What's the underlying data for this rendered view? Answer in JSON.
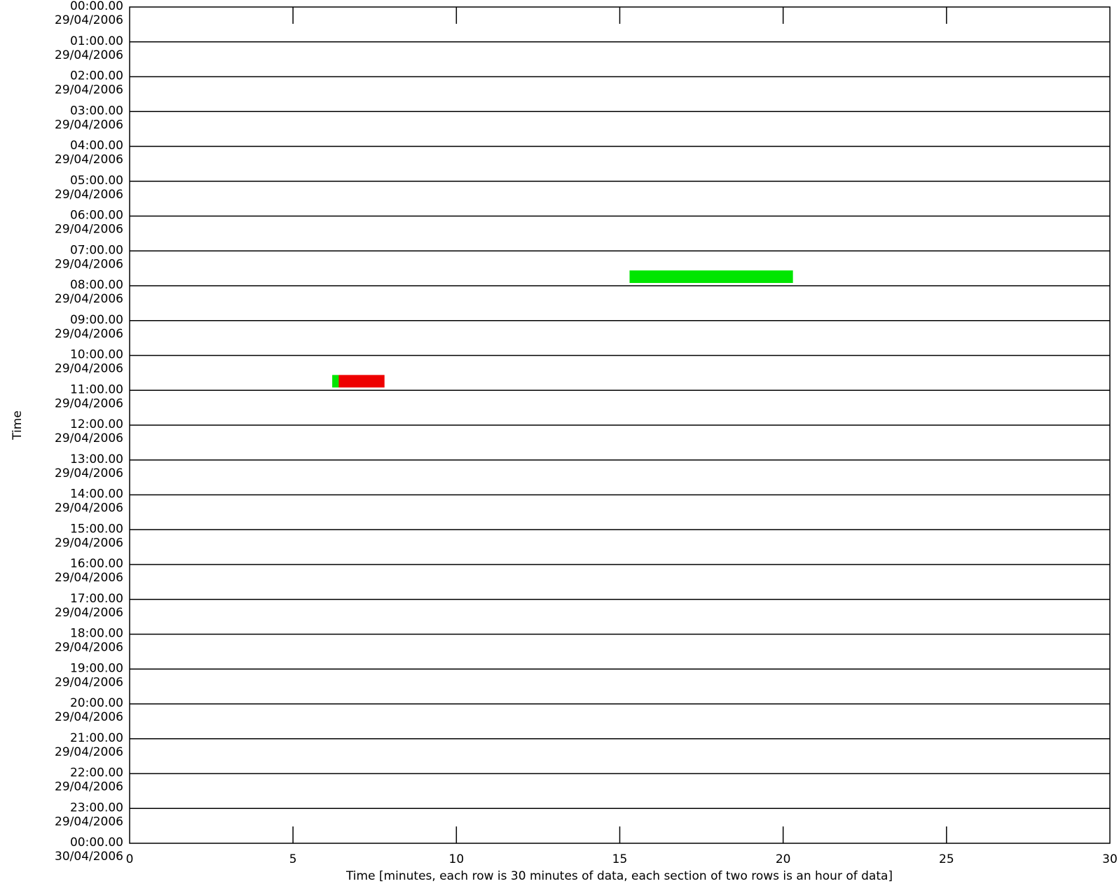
{
  "chart_data": {
    "type": "heatmap",
    "title": "",
    "xlabel": "Time [minutes, each row is 30 minutes of data, each section of two rows is an hour of data]",
    "ylabel": "Time",
    "xlim": [
      0,
      30
    ],
    "x_ticks": [
      "0",
      "5",
      "10",
      "15",
      "20",
      "25",
      "30"
    ],
    "y_ticks": [
      {
        "time": "00:00.00",
        "date": "29/04/2006"
      },
      {
        "time": "01:00.00",
        "date": "29/04/2006"
      },
      {
        "time": "02:00.00",
        "date": "29/04/2006"
      },
      {
        "time": "03:00.00",
        "date": "29/04/2006"
      },
      {
        "time": "04:00.00",
        "date": "29/04/2006"
      },
      {
        "time": "05:00.00",
        "date": "29/04/2006"
      },
      {
        "time": "06:00.00",
        "date": "29/04/2006"
      },
      {
        "time": "07:00.00",
        "date": "29/04/2006"
      },
      {
        "time": "08:00.00",
        "date": "29/04/2006"
      },
      {
        "time": "09:00.00",
        "date": "29/04/2006"
      },
      {
        "time": "10:00.00",
        "date": "29/04/2006"
      },
      {
        "time": "11:00.00",
        "date": "29/04/2006"
      },
      {
        "time": "12:00.00",
        "date": "29/04/2006"
      },
      {
        "time": "13:00.00",
        "date": "29/04/2006"
      },
      {
        "time": "14:00.00",
        "date": "29/04/2006"
      },
      {
        "time": "15:00.00",
        "date": "29/04/2006"
      },
      {
        "time": "16:00.00",
        "date": "29/04/2006"
      },
      {
        "time": "17:00.00",
        "date": "29/04/2006"
      },
      {
        "time": "18:00.00",
        "date": "29/04/2006"
      },
      {
        "time": "19:00.00",
        "date": "29/04/2006"
      },
      {
        "time": "20:00.00",
        "date": "29/04/2006"
      },
      {
        "time": "21:00.00",
        "date": "29/04/2006"
      },
      {
        "time": "22:00.00",
        "date": "29/04/2006"
      },
      {
        "time": "23:00.00",
        "date": "29/04/2006"
      },
      {
        "time": "00:00.00",
        "date": "30/04/2006"
      }
    ],
    "segments": [
      {
        "hour": "07:00.00",
        "row": 2,
        "x_start": 15.3,
        "x_end": 20.3,
        "color": "#00e600"
      },
      {
        "hour": "10:00.00",
        "row": 2,
        "x_start": 6.2,
        "x_end": 6.4,
        "color": "#00e600"
      },
      {
        "hour": "10:00.00",
        "row": 2,
        "x_start": 6.4,
        "x_end": 7.8,
        "color": "#ee0000"
      }
    ],
    "grid": true,
    "colors": {
      "green": "#00e600",
      "red": "#ee0000",
      "axis": "#000000"
    }
  }
}
